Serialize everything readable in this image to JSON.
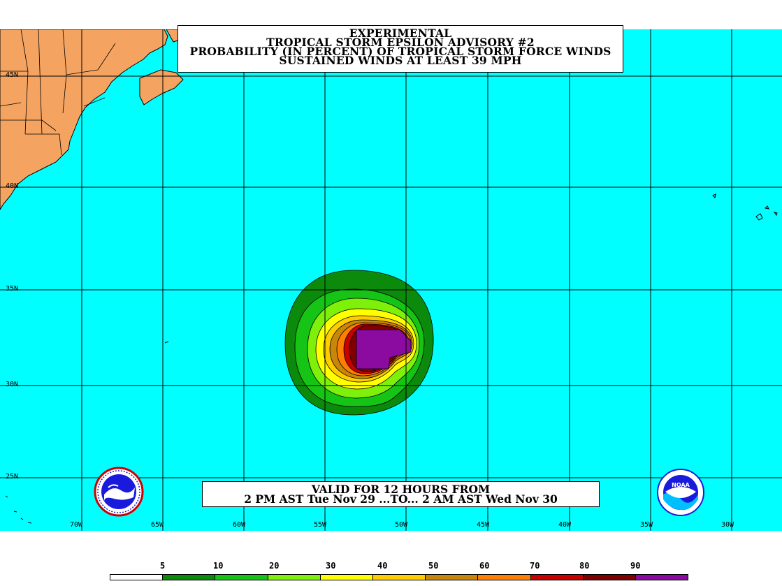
{
  "title": {
    "line1": "EXPERIMENTAL",
    "line2": "TROPICAL STORM EPSILON ADVISORY #2",
    "line3": "PROBABILITY (IN PERCENT) OF TROPICAL STORM FORCE WINDS",
    "line4": "SUSTAINED WINDS AT LEAST 39 MPH"
  },
  "valid": {
    "line1": "VALID FOR 12 HOURS FROM",
    "line2": "2 PM AST Tue Nov 29 ...TO... 2 AM AST Wed Nov 30"
  },
  "latitude_labels": [
    "45N",
    "40N",
    "35N",
    "30N",
    "25N"
  ],
  "longitude_labels": [
    "70W",
    "65W",
    "60W",
    "55W",
    "50W",
    "45W",
    "40W",
    "35W",
    "30W"
  ],
  "legend": {
    "labels": [
      "5",
      "10",
      "20",
      "30",
      "40",
      "50",
      "60",
      "70",
      "80",
      "90"
    ],
    "colors": [
      "#ffffff",
      "#0b8a0b",
      "#16c416",
      "#7ef00a",
      "#ffff00",
      "#ffcc00",
      "#c8860a",
      "#ff7f00",
      "#c80000",
      "#800000",
      "#8b0aa0"
    ]
  },
  "colors": {
    "ocean": "#00ffff",
    "land": "#f4a460",
    "grid": "#000000"
  },
  "logos": {
    "left": "nws-logo",
    "right": "noaa-logo"
  }
}
